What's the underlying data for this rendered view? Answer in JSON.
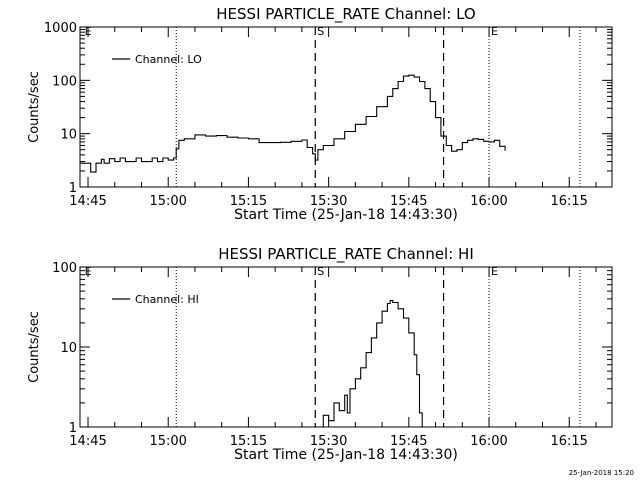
{
  "footer_stamp": "25-Jan-2018 15:20",
  "chart_data": [
    {
      "type": "line",
      "title": "HESSI PARTICLE_RATE Channel: LO",
      "ylabel": "Counts/sec",
      "xlabel": "Start Time (25-Jan-18 14:43:30)",
      "y_scale": "log",
      "ylim": [
        1,
        1000
      ],
      "ytick_labels": [
        "1",
        "10",
        "100",
        "1000"
      ],
      "ytick_values": [
        1,
        10,
        100,
        1000
      ],
      "xlim": [
        "14:43:30",
        "16:23:00"
      ],
      "xtick_labels": [
        "14:45",
        "15:00",
        "15:15",
        "15:30",
        "15:45",
        "16:00",
        "16:15"
      ],
      "xtick_values": [
        "14:45",
        "15:00",
        "15:15",
        "15:30",
        "15:45",
        "16:00",
        "16:15"
      ],
      "legend_label": "Channel: LO",
      "legend_position": "top-left",
      "markers": {
        "dotted": [
          "15:01:30",
          "16:00:00",
          "16:17:00"
        ],
        "dashed": [
          "15:27:30",
          "15:51:30"
        ],
        "labels": [
          {
            "text": "E",
            "x": "14:44:00"
          },
          {
            "text": "S",
            "x": "15:27:30"
          },
          {
            "text": "E",
            "x": "16:00:00"
          }
        ]
      },
      "series": [
        {
          "name": "Channel: LO",
          "x": [
            "14:43:30",
            "14:45:00",
            "14:45:30",
            "14:46:00",
            "14:46:30",
            "14:47:00",
            "14:47:30",
            "14:48:00",
            "14:49:00",
            "14:50:00",
            "14:51:00",
            "14:52:00",
            "14:53:00",
            "14:54:00",
            "14:55:00",
            "14:56:00",
            "14:57:00",
            "14:58:00",
            "14:59:00",
            "15:00:00",
            "15:01:00",
            "15:01:30",
            "15:02:00",
            "15:03:00",
            "15:05:00",
            "15:07:00",
            "15:09:00",
            "15:11:00",
            "15:13:00",
            "15:15:00",
            "15:17:00",
            "15:19:00",
            "15:21:00",
            "15:23:00",
            "15:25:00",
            "15:26:00",
            "15:27:00",
            "15:27:30",
            "15:28:00",
            "15:29:00",
            "15:31:00",
            "15:33:00",
            "15:35:00",
            "15:37:00",
            "15:39:00",
            "15:41:00",
            "15:42:00",
            "15:43:00",
            "15:44:00",
            "15:45:00",
            "15:46:00",
            "15:47:00",
            "15:48:00",
            "15:49:00",
            "15:50:00",
            "15:51:00",
            "15:52:00",
            "15:53:00",
            "15:54:00",
            "15:55:00",
            "15:56:00",
            "15:57:00",
            "15:58:00",
            "15:59:00",
            "16:00:00",
            "16:01:00",
            "16:02:00",
            "16:03:00"
          ],
          "values": [
            2.8,
            2.8,
            1.9,
            1.9,
            2.8,
            2.8,
            3.3,
            2.8,
            3.4,
            3.0,
            3.5,
            3.0,
            3.0,
            3.5,
            3.0,
            3.0,
            3.5,
            3.0,
            3.5,
            3.2,
            3.5,
            5.2,
            7.5,
            8.0,
            9.5,
            9.0,
            9.2,
            8.6,
            8.3,
            8.0,
            6.8,
            6.8,
            6.9,
            7.2,
            7.6,
            5.5,
            4.2,
            3.2,
            5.0,
            6.0,
            8.0,
            11,
            15,
            21,
            32,
            50,
            70,
            95,
            120,
            125,
            115,
            95,
            70,
            40,
            20,
            9.0,
            6.0,
            4.7,
            5.0,
            6.8,
            7.5,
            8.0,
            7.8,
            7.2,
            7.0,
            7.5,
            5.8,
            4.8
          ]
        }
      ]
    },
    {
      "type": "line",
      "title": "HESSI PARTICLE_RATE Channel: HI",
      "ylabel": "Counts/sec",
      "xlabel": "Start Time (25-Jan-18 14:43:30)",
      "y_scale": "log",
      "ylim": [
        1,
        100
      ],
      "ytick_labels": [
        "1",
        "10",
        "100"
      ],
      "ytick_values": [
        1,
        10,
        100
      ],
      "xlim": [
        "14:43:30",
        "16:23:00"
      ],
      "xtick_labels": [
        "14:45",
        "15:00",
        "15:15",
        "15:30",
        "15:45",
        "16:00",
        "16:15"
      ],
      "xtick_values": [
        "14:45",
        "15:00",
        "15:15",
        "15:30",
        "15:45",
        "16:00",
        "16:15"
      ],
      "legend_label": "Channel: HI",
      "legend_position": "top-left",
      "markers": {
        "dotted": [
          "15:01:30",
          "16:00:00",
          "16:17:00"
        ],
        "dashed": [
          "15:27:30",
          "15:51:30"
        ],
        "labels": [
          {
            "text": "E",
            "x": "14:44:00"
          },
          {
            "text": "S",
            "x": "15:27:30"
          },
          {
            "text": "E",
            "x": "16:00:00"
          }
        ]
      },
      "series": [
        {
          "name": "Channel: HI",
          "x": [
            "15:28:00",
            "15:29:00",
            "15:30:00",
            "15:31:00",
            "15:32:00",
            "15:33:00",
            "15:33:30",
            "15:34:00",
            "15:35:00",
            "15:36:00",
            "15:37:00",
            "15:38:00",
            "15:39:00",
            "15:40:00",
            "15:41:00",
            "15:41:30",
            "15:42:00",
            "15:43:00",
            "15:44:00",
            "15:45:00",
            "15:46:00",
            "15:46:30",
            "15:47:00",
            "15:47:30"
          ],
          "values": [
            1.0,
            1.4,
            1.2,
            2.0,
            1.6,
            2.5,
            1.5,
            3.0,
            4.0,
            5.5,
            8.5,
            13,
            20,
            28,
            35,
            38,
            36,
            30,
            23,
            15,
            8.0,
            4.5,
            1.5,
            1.0
          ]
        }
      ]
    }
  ]
}
